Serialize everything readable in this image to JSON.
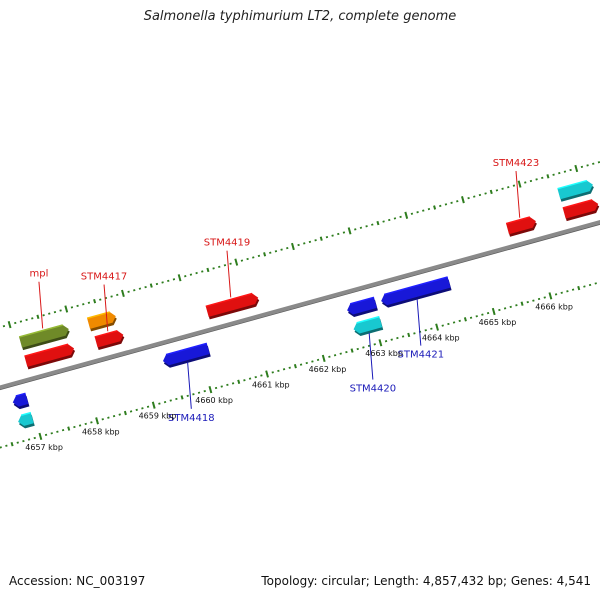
{
  "title": "Salmonella typhimurium LT2, complete genome",
  "footer": {
    "accession": "Accession: NC_003197",
    "summary": "Topology: circular; Length: 4,857,432 bp; Genes: 4,541"
  },
  "colors": {
    "backbone": "#8a8a8a",
    "tick": "#2e7d1e",
    "forward_label": "#d81818",
    "reverse_label": "#1a1ab8",
    "red": "#e01010",
    "blue": "#1818d8",
    "cyan": "#18c8d0",
    "orange": "#f08a00",
    "olive": "#6f8a28"
  },
  "scale": {
    "unit": "kbp",
    "labels": [
      "4657 kbp",
      "4658 kbp",
      "4659 kbp",
      "4660 kbp",
      "4661 kbp",
      "4662 kbp",
      "4663 kbp",
      "4664 kbp",
      "4665 kbp",
      "4666 kbp"
    ]
  },
  "genes": [
    {
      "name": "mpl",
      "strand": "forward",
      "color": "olive",
      "start": 4657.1,
      "end": 4657.95,
      "lane": 1
    },
    {
      "name": "",
      "strand": "forward",
      "color": "red",
      "start": 4657.1,
      "end": 4657.95,
      "lane": 0
    },
    {
      "name": "",
      "strand": "forward",
      "color": "orange",
      "start": 4658.3,
      "end": 4658.78,
      "lane": 1
    },
    {
      "name": "STM4417",
      "strand": "forward",
      "color": "red",
      "start": 4658.34,
      "end": 4658.82,
      "lane": 0
    },
    {
      "name": "STM4418",
      "strand": "reverse",
      "color": "blue",
      "start": 4659.35,
      "end": 4660.15,
      "lane": 0
    },
    {
      "name": "STM4419",
      "strand": "forward",
      "color": "red",
      "start": 4660.3,
      "end": 4661.2,
      "lane": 0
    },
    {
      "name": "",
      "strand": "reverse",
      "color": "blue",
      "start": 4662.6,
      "end": 4663.1,
      "lane": 0
    },
    {
      "name": "STM4420",
      "strand": "reverse",
      "color": "cyan",
      "start": 4662.62,
      "end": 4663.1,
      "lane": 1
    },
    {
      "name": "STM4421",
      "strand": "reverse",
      "color": "blue",
      "start": 4663.2,
      "end": 4664.4,
      "lane": 0
    },
    {
      "name": "STM4423",
      "strand": "forward",
      "color": "red",
      "start": 4665.6,
      "end": 4666.1,
      "lane": 0
    },
    {
      "name": "",
      "strand": "forward",
      "color": "cyan",
      "start": 4666.6,
      "end": 4667.2,
      "lane": 1
    },
    {
      "name": "",
      "strand": "forward",
      "color": "red",
      "start": 4666.6,
      "end": 4667.2,
      "lane": 0
    },
    {
      "name": "",
      "strand": "reverse",
      "color": "blue",
      "start": 4656.7,
      "end": 4656.95,
      "lane": 0
    },
    {
      "name": "",
      "strand": "reverse",
      "color": "cyan",
      "start": 4656.7,
      "end": 4656.95,
      "lane": 1
    }
  ]
}
